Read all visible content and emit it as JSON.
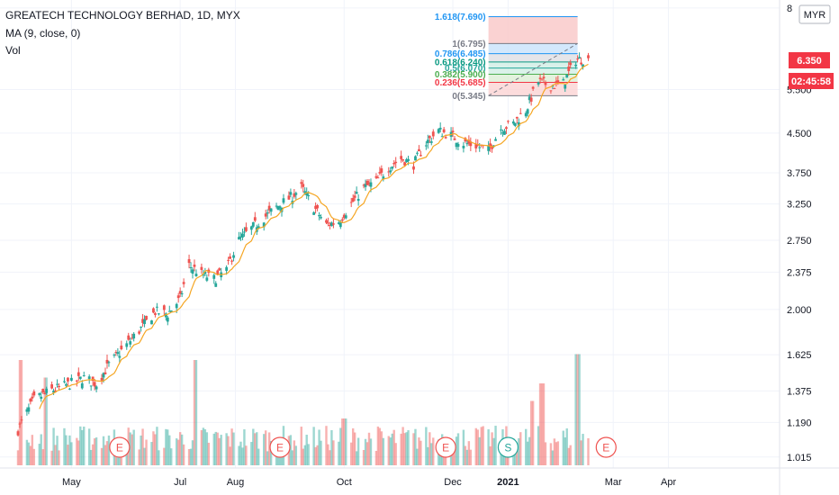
{
  "legend": {
    "title": "GREATECH TECHNOLOGY BERHAD, 1D, MYX",
    "ma": "MA (9, close, 0)",
    "vol": "Vol"
  },
  "currency_badge": "MYR",
  "last_price_label": "6.350",
  "countdown_label": "02:45:58",
  "colors": {
    "up": "#26a69a",
    "down": "#ef5350",
    "ma": "#f5a623",
    "axis": "#131722"
  },
  "chart_data": {
    "type": "candlestick",
    "title": "GREATECH TECHNOLOGY BERHAD, 1D, MYX",
    "indicators": [
      "MA (9, close, 0)",
      "Vol"
    ],
    "scale": "log",
    "y_ticks": [
      "8",
      "5.500",
      "4.500",
      "3.750",
      "3.250",
      "2.750",
      "2.375",
      "2.000",
      "1.625",
      "1.375",
      "1.190",
      "1.015"
    ],
    "y_tick_values": [
      8,
      5.5,
      4.5,
      3.75,
      3.25,
      2.75,
      2.375,
      2.0,
      1.625,
      1.375,
      1.19,
      1.015
    ],
    "x_ticks": [
      "May",
      "Jul",
      "Aug",
      "Oct",
      "Dec",
      "2021",
      "Mar",
      "Apr"
    ],
    "x_tick_dates": [
      "2020-05-01",
      "2020-07-01",
      "2020-08-01",
      "2020-10-01",
      "2020-12-01",
      "2021-01-01",
      "2021-03-01",
      "2021-04-01"
    ],
    "x_range": [
      "2020-04-01",
      "2021-04-30"
    ],
    "last_price": 6.35,
    "price_path": [
      [
        "2020-04-01",
        1.15
      ],
      [
        "2020-04-10",
        1.32
      ],
      [
        "2020-04-20",
        1.38
      ],
      [
        "2020-04-30",
        1.42
      ],
      [
        "2020-05-08",
        1.46
      ],
      [
        "2020-05-15",
        1.42
      ],
      [
        "2020-05-22",
        1.55
      ],
      [
        "2020-06-01",
        1.7
      ],
      [
        "2020-06-10",
        1.85
      ],
      [
        "2020-06-17",
        1.98
      ],
      [
        "2020-06-24",
        1.96
      ],
      [
        "2020-07-01",
        2.1
      ],
      [
        "2020-07-06",
        2.45
      ],
      [
        "2020-07-13",
        2.35
      ],
      [
        "2020-07-20",
        2.3
      ],
      [
        "2020-07-27",
        2.4
      ],
      [
        "2020-08-03",
        2.75
      ],
      [
        "2020-08-10",
        2.9
      ],
      [
        "2020-08-17",
        3.05
      ],
      [
        "2020-08-24",
        3.2
      ],
      [
        "2020-09-01",
        3.35
      ],
      [
        "2020-09-07",
        3.5
      ],
      [
        "2020-09-14",
        3.2
      ],
      [
        "2020-09-21",
        2.95
      ],
      [
        "2020-09-28",
        3.0
      ],
      [
        "2020-10-05",
        3.25
      ],
      [
        "2020-10-12",
        3.5
      ],
      [
        "2020-10-19",
        3.6
      ],
      [
        "2020-10-26",
        3.85
      ],
      [
        "2020-11-02",
        4.0
      ],
      [
        "2020-11-09",
        3.9
      ],
      [
        "2020-11-16",
        4.3
      ],
      [
        "2020-11-23",
        4.55
      ],
      [
        "2020-11-30",
        4.45
      ],
      [
        "2020-12-07",
        4.3
      ],
      [
        "2020-12-14",
        4.25
      ],
      [
        "2020-12-21",
        4.15
      ],
      [
        "2020-12-28",
        4.6
      ],
      [
        "2021-01-04",
        4.7
      ],
      [
        "2021-01-11",
        5.0
      ],
      [
        "2021-01-18",
        5.7
      ],
      [
        "2021-01-25",
        5.6
      ],
      [
        "2021-02-01",
        5.65
      ],
      [
        "2021-02-08",
        6.3
      ],
      [
        "2021-02-15",
        6.35
      ]
    ],
    "volume_spikes": [
      [
        "2020-04-03",
        0.9
      ],
      [
        "2020-04-17",
        0.75
      ],
      [
        "2020-07-10",
        0.9
      ],
      [
        "2020-10-01",
        0.4
      ],
      [
        "2021-01-15",
        0.55
      ],
      [
        "2021-01-20",
        0.7
      ],
      [
        "2021-02-09",
        0.95
      ]
    ],
    "earnings_markers": [
      {
        "date": "2020-05-28",
        "label": "E"
      },
      {
        "date": "2020-08-26",
        "label": "E"
      },
      {
        "date": "2020-11-27",
        "label": "E"
      },
      {
        "date": "2021-01-01",
        "label": "S"
      },
      {
        "date": "2021-02-25",
        "label": "E"
      }
    ],
    "fib_retracement": {
      "start_date": "2020-12-21",
      "end_date": "2021-02-09",
      "levels": [
        {
          "ratio": "1.618",
          "price": 7.69,
          "label": "1.618(7.690)",
          "color": "#2196f3"
        },
        {
          "ratio": "1",
          "price": 6.795,
          "label": "1(6.795)",
          "color": "#787b86"
        },
        {
          "ratio": "0.786",
          "price": 6.485,
          "label": "0.786(6.485)",
          "color": "#2196f3"
        },
        {
          "ratio": "0.618",
          "price": 6.24,
          "label": "0.618(6.240)",
          "color": "#089981"
        },
        {
          "ratio": "0.5",
          "price": 6.07,
          "label": "0.5(6.070)",
          "color": "#26a69a"
        },
        {
          "ratio": "0.382",
          "price": 5.9,
          "label": "0.382(5.900)",
          "color": "#4caf50"
        },
        {
          "ratio": "0.236",
          "price": 5.685,
          "label": "0.236(5.685)",
          "color": "#f23645"
        },
        {
          "ratio": "0",
          "price": 5.345,
          "label": "0(5.345)",
          "color": "#787b86"
        }
      ]
    }
  }
}
